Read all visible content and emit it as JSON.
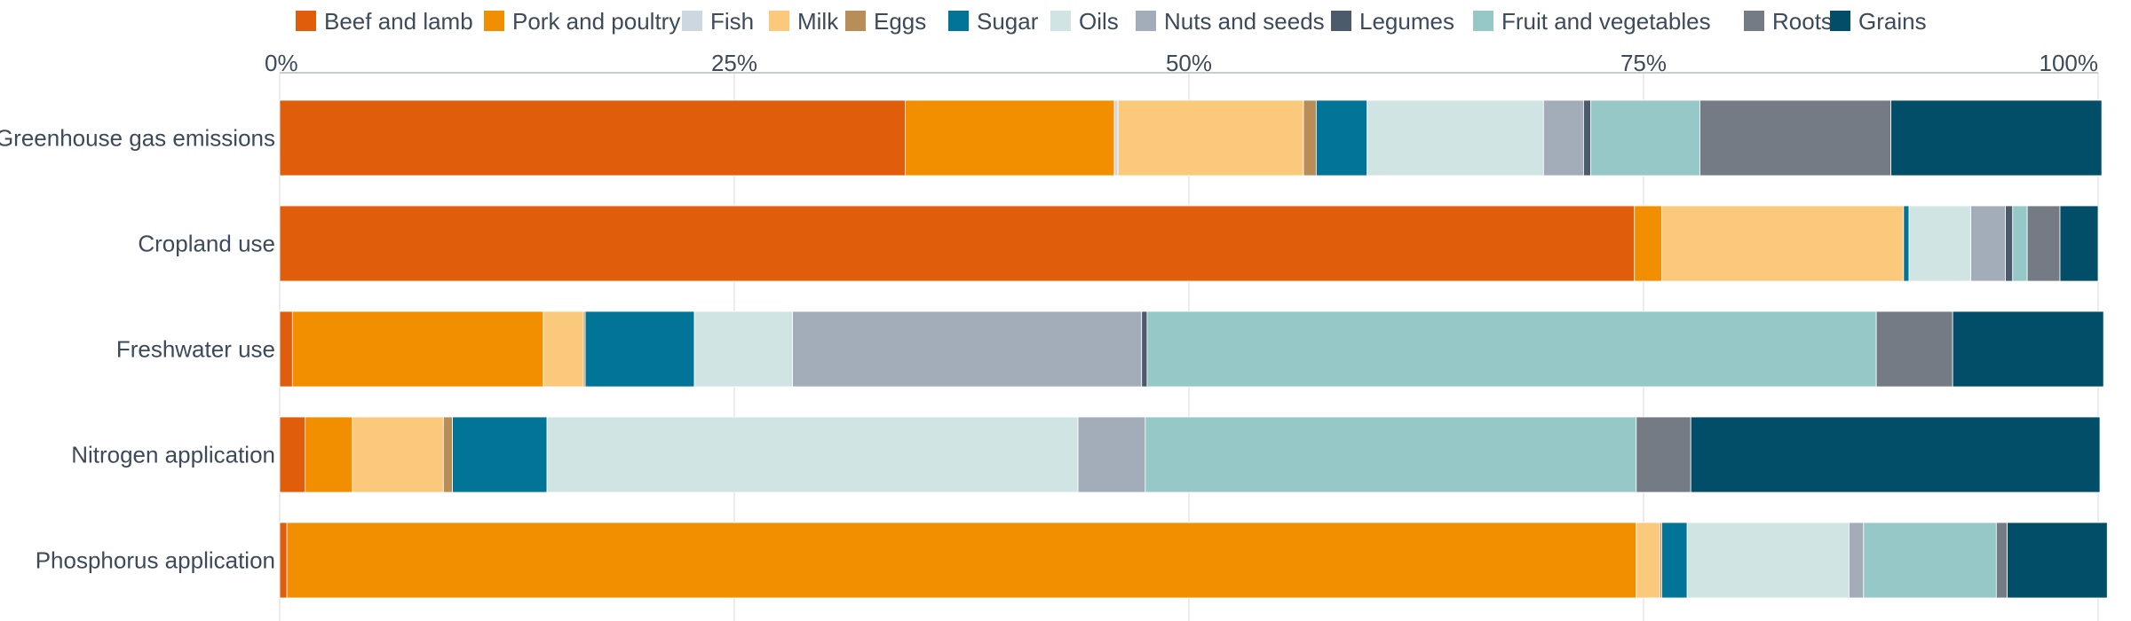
{
  "chart_data": {
    "type": "bar",
    "orientation": "horizontal",
    "stacked": true,
    "normalized": true,
    "title": "",
    "xlabel": "",
    "ylabel": "",
    "xlim": [
      0,
      100
    ],
    "x_ticks": [
      "0%",
      "25%",
      "50%",
      "75%",
      "100%"
    ],
    "x_axis_position": "top",
    "grid": true,
    "legend_position": "top",
    "categories": [
      "Greenhouse gas emissions",
      "Cropland use",
      "Freshwater use",
      "Nitrogen application",
      "Phosphorus application"
    ],
    "series": [
      {
        "name": "Beef and lamb",
        "color": "#e05d0c",
        "values": [
          34.4,
          74.5,
          0.7,
          1.4,
          0.4
        ]
      },
      {
        "name": "Pork and poultry",
        "color": "#f28f00",
        "values": [
          11.5,
          1.5,
          13.8,
          2.6,
          74.2
        ]
      },
      {
        "name": "Fish",
        "color": "#cdd7e0",
        "values": [
          0.2,
          0.0,
          0.0,
          0.0,
          0.0
        ]
      },
      {
        "name": "Milk",
        "color": "#fbc97c",
        "values": [
          10.2,
          13.3,
          2.2,
          5.0,
          1.3
        ]
      },
      {
        "name": "Eggs",
        "color": "#b98d58",
        "values": [
          0.7,
          0.0,
          0.1,
          0.5,
          0.1
        ]
      },
      {
        "name": "Sugar",
        "color": "#017497",
        "values": [
          2.8,
          0.3,
          6.0,
          5.2,
          1.4
        ]
      },
      {
        "name": "Oils",
        "color": "#d0e5e3",
        "values": [
          9.7,
          3.4,
          5.4,
          29.2,
          8.9
        ]
      },
      {
        "name": "Nuts and seeds",
        "color": "#a2adb9",
        "values": [
          2.2,
          1.9,
          19.2,
          3.7,
          0.8
        ]
      },
      {
        "name": "Legumes",
        "color": "#4b5b6c",
        "values": [
          0.4,
          0.4,
          0.3,
          0.0,
          0.0
        ]
      },
      {
        "name": "Fruit and vegetables",
        "color": "#96c8c8",
        "values": [
          6.0,
          0.8,
          40.1,
          27.0,
          7.3
        ]
      },
      {
        "name": "Roots",
        "color": "#757b85",
        "values": [
          10.5,
          1.8,
          4.2,
          3.0,
          0.6
        ]
      },
      {
        "name": "Grains",
        "color": "#024e69",
        "values": [
          11.6,
          2.1,
          8.3,
          22.5,
          5.5
        ]
      }
    ]
  }
}
